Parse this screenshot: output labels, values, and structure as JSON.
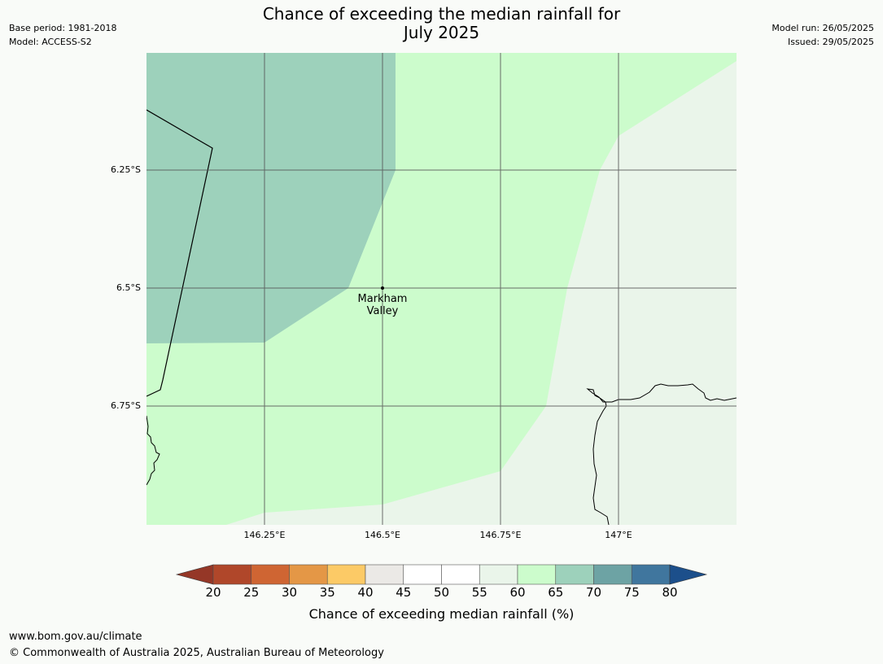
{
  "header": {
    "title_line1": "Chance of exceeding the median rainfall for",
    "title_line2": "July 2025",
    "base_period": "Base period: 1981-2018",
    "model": "Model: ACCESS-S2",
    "model_run": "Model run: 26/05/2025",
    "issued": "Issued: 29/05/2025"
  },
  "map": {
    "lat_ticks": [
      "6.25°S",
      "6.5°S",
      "6.75°S"
    ],
    "lon_ticks": [
      "146.25°E",
      "146.5°E",
      "146.75°E",
      "147°E"
    ],
    "location_line1": "Markham",
    "location_line2": "Valley",
    "zone_colors": {
      "65_70": "#9dd1bb",
      "60_65": "#ccfccc",
      "55_60": "#eaf5ea"
    }
  },
  "colorbar": {
    "ticks": [
      "20",
      "25",
      "30",
      "35",
      "40",
      "45",
      "50",
      "55",
      "60",
      "65",
      "70",
      "75",
      "80"
    ],
    "colors": [
      "#b0472a",
      "#cf6533",
      "#e49746",
      "#fcca66",
      "#ebe9e6",
      "#ffffff",
      "#ffffff",
      "#eaf5ea",
      "#ccfccc",
      "#9dd1bb",
      "#6da3a4",
      "#40769e"
    ],
    "under_color": "#953727",
    "over_color": "#1c4f8b",
    "label": "Chance of exceeding median rainfall (%)"
  },
  "footer": {
    "website": "www.bom.gov.au/climate",
    "copyright": "© Commonwealth of Australia 2025, Australian Bureau of Meteorology"
  }
}
